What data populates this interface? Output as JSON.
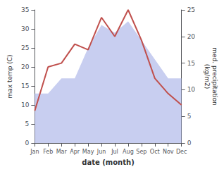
{
  "chart_data": {
    "type": "line",
    "categories": [
      "Jan",
      "Feb",
      "Mar",
      "Apr",
      "May",
      "Jun",
      "Jul",
      "Aug",
      "Sep",
      "Oct",
      "Nov",
      "Dec"
    ],
    "xlabel": "date (month)",
    "ylabel": "max temp (C)",
    "y2label": "med. precipitation\n(kg/m2)",
    "ylim": [
      0,
      35
    ],
    "yticks": [
      0,
      5,
      10,
      15,
      20,
      25,
      30,
      35
    ],
    "y2lim": [
      0,
      25
    ],
    "y2ticks": [
      0,
      5,
      10,
      15,
      20,
      25
    ],
    "grid": false,
    "series": [
      {
        "type": "area",
        "color": "#aab4e8",
        "values": [
          13.0,
          13.0,
          17.0,
          17.0,
          25.0,
          31.0,
          29.0,
          32.0,
          27.0,
          22.0,
          17.0,
          17.0
        ]
      },
      {
        "type": "line",
        "color": "#c0504d",
        "values": [
          8.5,
          20.0,
          21.0,
          26.0,
          24.5,
          33.0,
          28.0,
          35.0,
          27.0,
          17.0,
          13.0,
          10.0
        ]
      }
    ]
  }
}
